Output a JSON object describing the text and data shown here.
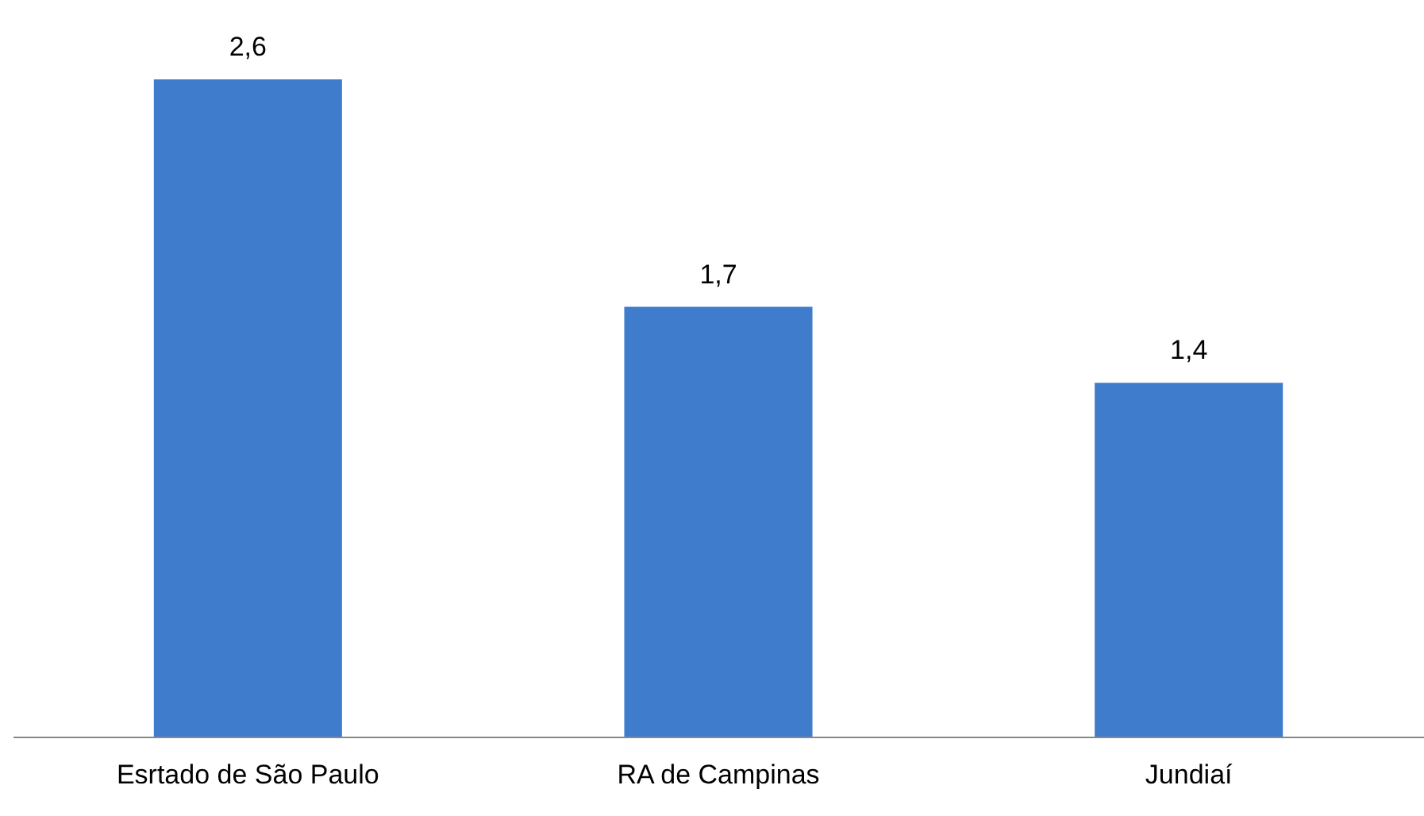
{
  "chart_data": {
    "type": "bar",
    "categories": [
      "Esrtado de São Paulo",
      "RA de Campinas",
      "Jundiaí"
    ],
    "values": [
      2.6,
      1.7,
      1.4
    ],
    "value_labels": [
      "2,6",
      "1,7",
      "1,4"
    ],
    "color": "#3f7ccb",
    "ylim": [
      0,
      2.6
    ],
    "grid": false
  }
}
